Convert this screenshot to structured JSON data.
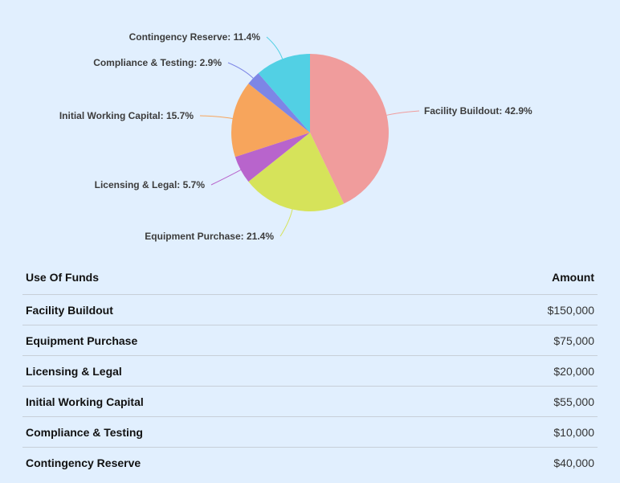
{
  "chart_data": {
    "type": "pie",
    "slices": [
      {
        "label": "Facility Buildout",
        "value": 42.9,
        "amount": 150000,
        "color": "#f09c9c"
      },
      {
        "label": "Equipment Purchase",
        "value": 21.4,
        "amount": 75000,
        "color": "#d6e35a"
      },
      {
        "label": "Licensing & Legal",
        "value": 5.7,
        "amount": 20000,
        "color": "#b864cc"
      },
      {
        "label": "Initial Working Capital",
        "value": 15.7,
        "amount": 55000,
        "color": "#f7a55c"
      },
      {
        "label": "Compliance & Testing",
        "value": 2.9,
        "amount": 10000,
        "color": "#7d86e6"
      },
      {
        "label": "Contingency Reserve",
        "value": 11.4,
        "amount": 40000,
        "color": "#52d0e4"
      }
    ]
  },
  "table": {
    "headers": {
      "name": "Use Of Funds",
      "amount": "Amount"
    },
    "rows": [
      {
        "name": "Facility Buildout",
        "amount": "$150,000"
      },
      {
        "name": "Equipment Purchase",
        "amount": "$75,000"
      },
      {
        "name": "Licensing & Legal",
        "amount": "$20,000"
      },
      {
        "name": "Initial Working Capital",
        "amount": "$55,000"
      },
      {
        "name": "Compliance & Testing",
        "amount": "$10,000"
      },
      {
        "name": "Contingency Reserve",
        "amount": "$40,000"
      }
    ]
  }
}
